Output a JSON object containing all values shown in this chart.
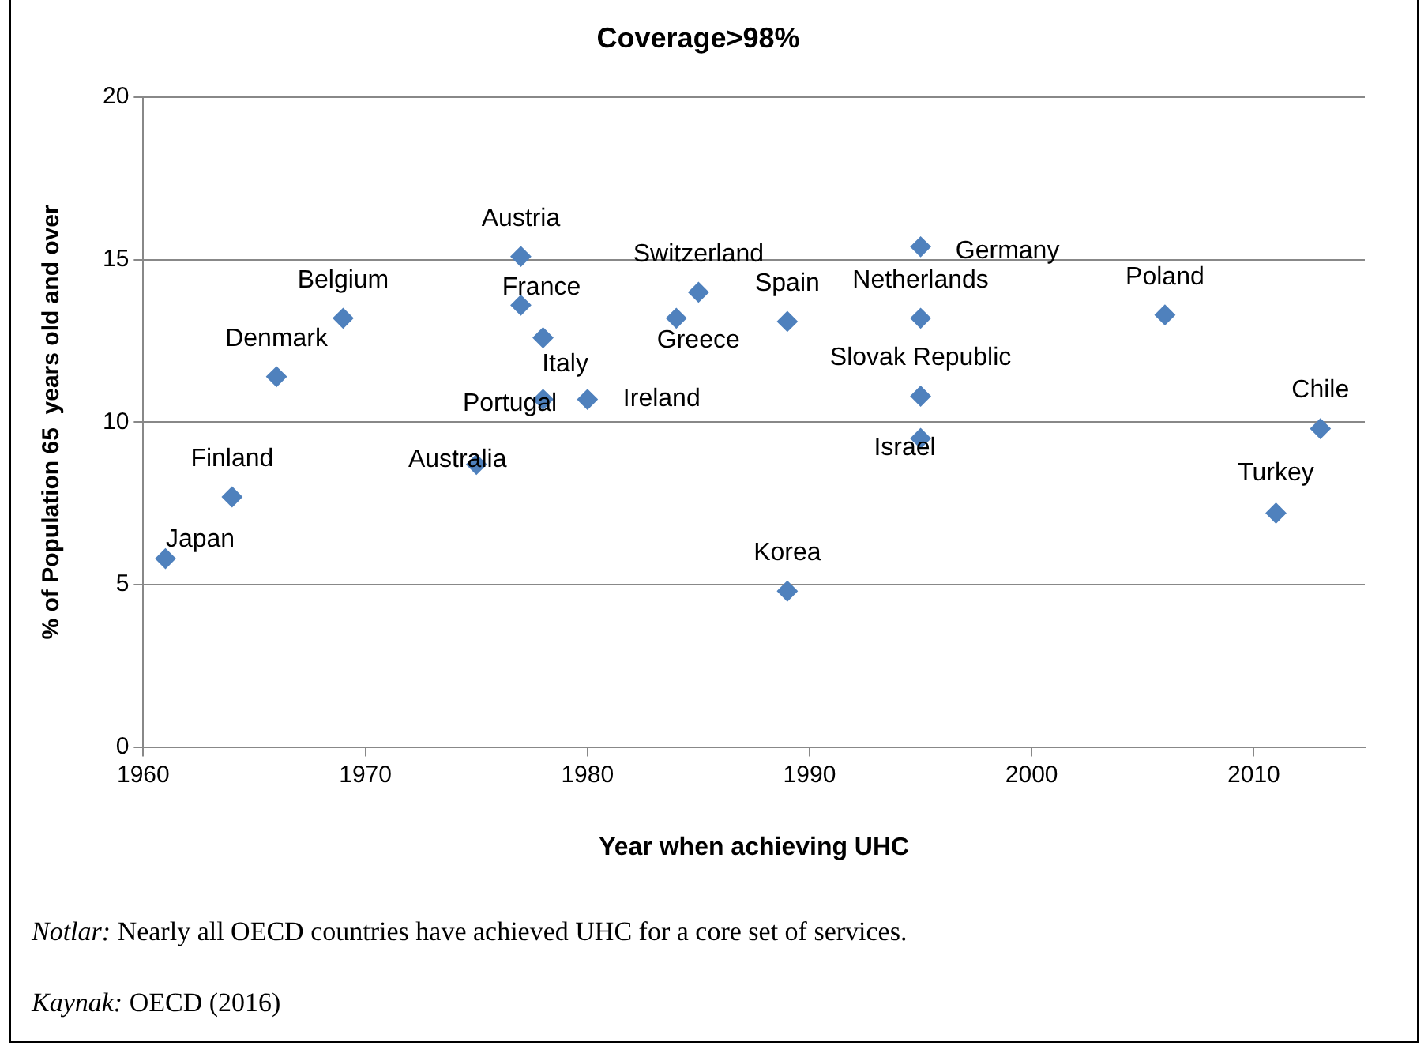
{
  "chart_data": {
    "type": "scatter",
    "title": "Coverage>98%",
    "xlabel": "Year when achieving UHC",
    "ylabel": "% of Population 65  years old and over",
    "x": [
      1961,
      1964,
      1966,
      1969,
      1975,
      1977,
      1977,
      1978,
      1978,
      1980,
      1984,
      1985,
      1989,
      1989,
      1995,
      1995,
      1995,
      1995,
      2006,
      2011,
      2013
    ],
    "values": [
      5.8,
      7.7,
      11.4,
      13.2,
      8.7,
      15.1,
      13.6,
      12.6,
      10.7,
      10.7,
      13.2,
      14.0,
      13.1,
      4.8,
      15.4,
      13.2,
      10.8,
      9.5,
      13.3,
      7.2,
      9.8
    ],
    "value_labels": [
      "Japan",
      "Finland",
      "Denmark",
      "Belgium",
      "Australia",
      "Austria",
      "France",
      "Italy",
      "Portugal",
      "Ireland",
      "Greece",
      "Switzerland",
      "Spain",
      "Korea",
      "Germany",
      "Netherlands",
      "Slovak Republic",
      "Israel",
      "Poland",
      "Turkey",
      "Chile"
    ],
    "color": "#4f81bd",
    "marker": "diamond",
    "xlim": [
      1960,
      2015
    ],
    "xticks": [
      1960,
      1970,
      1980,
      1990,
      2000,
      2010
    ],
    "ylim": [
      0,
      20
    ],
    "yticks": [
      0,
      5,
      10,
      15,
      20
    ],
    "grid": "y",
    "legend": false,
    "annotations": [
      "Notlar: Nearly all OECD countries have achieved UHC for a core set of services.",
      "Kaynak: OECD (2016)"
    ]
  }
}
